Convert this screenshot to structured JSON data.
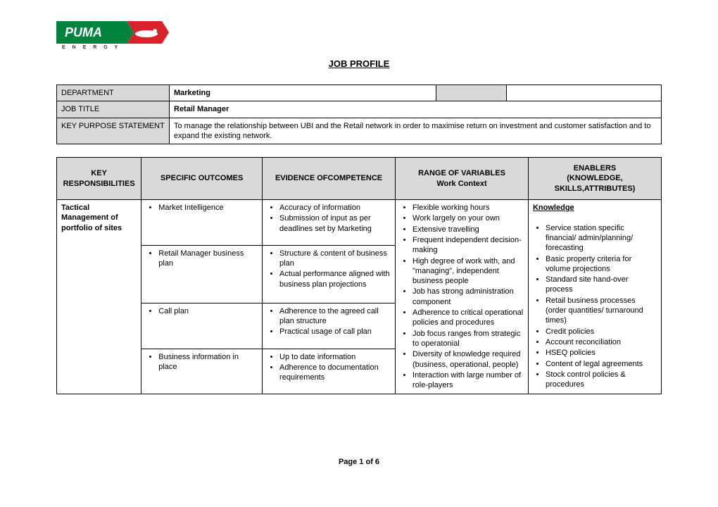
{
  "logo": {
    "brand_text": "PUMA",
    "sub_text": "E N E R G Y",
    "green": "#00843d",
    "red": "#d8232a",
    "white": "#ffffff"
  },
  "title": "JOB PROFILE",
  "header_rows": [
    {
      "label": "DEPARTMENT",
      "value": "Marketing",
      "has_extra": true
    },
    {
      "label": "JOB TITLE",
      "value": "Retail Manager",
      "has_extra": false
    },
    {
      "label": "KEY PURPOSE STATEMENT",
      "value": "To manage the relationship between UBI and the Retail network in order to maximise return on investment and customer satisfaction and to expand the existing network.",
      "has_extra": false,
      "value_bold": false
    }
  ],
  "main_headers": [
    "KEY RESPONSIBILITIES",
    "SPECIFIC OUTCOMES",
    "EVIDENCE OFCOMPETENCE",
    "RANGE OF VARIABLES\nWork Context",
    "ENABLERS\n(KNOWLEDGE, SKILLS,ATTRIBUTES)"
  ],
  "key_responsibility": "Tactical Management of portfolio of sites",
  "specific_outcomes": [
    {
      "items": [
        "Market Intelligence"
      ]
    },
    {
      "items": [
        "Retail Manager business plan"
      ]
    },
    {
      "items": [
        "Call plan"
      ]
    },
    {
      "items": [
        "Business information in place"
      ]
    }
  ],
  "evidence": [
    {
      "items": [
        "Accuracy of information",
        "Submission of input as per deadlines set by Marketing"
      ]
    },
    {
      "items": [
        "Structure & content of business plan",
        "Actual performance aligned with business plan projections"
      ]
    },
    {
      "items": [
        "Adherence to the agreed call plan structure",
        "Practical usage of call plan"
      ]
    },
    {
      "items": [
        "Up to date information",
        "Adherence to documentation requirements"
      ]
    }
  ],
  "range_items": [
    "Flexible working hours",
    "Work largely on your own",
    "Extensive travelling",
    "Frequent independent decision-making",
    "High degree of work with, and \"managing\", independent business people",
    "Job has strong administration component",
    "Adherence to critical operational policies and procedures",
    "Job focus ranges from strategic to operatonial",
    "Diversity of knowledge required (business, operational, people)",
    "Interaction with large number of role-players"
  ],
  "enablers_heading": "Knowledge",
  "enablers_items": [
    "Service station specific financial/ admin/planning/ forecasting",
    "Basic property criteria for volume projections",
    "Standard site hand-over process",
    "Retail business processes (order quantities/ turnaround times)",
    "Credit policies",
    "Account reconciliation",
    "HSEQ policies",
    "Content of legal agreements",
    "Stock control policies & procedures"
  ],
  "footer": "Page 1 of 6"
}
